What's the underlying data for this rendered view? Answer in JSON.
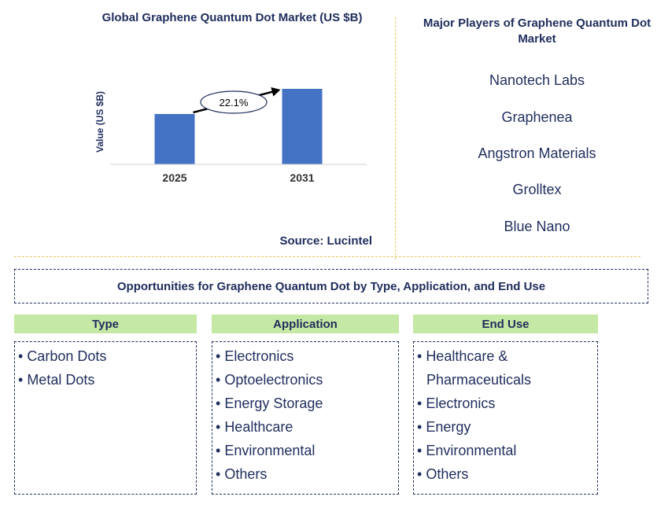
{
  "chart_data": {
    "type": "bar",
    "title": "Global Graphene Quantum Dot Market (US $B)",
    "ylabel": "Value (US $B)",
    "categories": [
      "2025",
      "2031"
    ],
    "values": [
      0.64,
      0.96
    ],
    "ylim": [
      0,
      1.0
    ],
    "grid": false,
    "annotation": "22.1%",
    "bar_color": "#4472c4"
  },
  "source": "Source: Lucintel",
  "players": {
    "title": "Major Players of Graphene Quantum Dot Market",
    "items": [
      "Nanotech Labs",
      "Graphenea",
      "Angstron Materials",
      "Grolltex",
      "Blue Nano"
    ]
  },
  "opportunities": {
    "title": "Opportunities for Graphene Quantum Dot by Type, Application, and End Use",
    "columns": [
      {
        "heading": "Type",
        "items": [
          "Carbon Dots",
          "Metal Dots"
        ]
      },
      {
        "heading": "Application",
        "items": [
          "Electronics",
          "Optoelectronics",
          "Energy Storage",
          "Healthcare",
          "Environmental",
          "Others"
        ]
      },
      {
        "heading": "End Use",
        "items": [
          "Healthcare & Pharmaceuticals",
          "Electronics",
          "Energy",
          "Environmental",
          "Others"
        ]
      }
    ]
  },
  "colors": {
    "text": "#1f2d5c",
    "header_fill": "#c5e8a4",
    "divider": "#e6c65a"
  }
}
